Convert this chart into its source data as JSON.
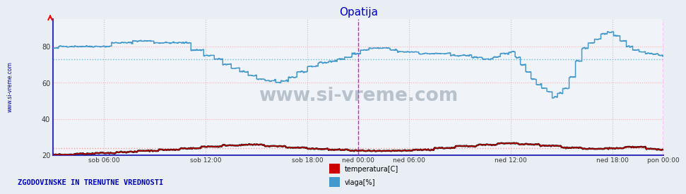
{
  "title": "Opatija",
  "title_color": "#0000cc",
  "bg_color": "#e8eef4",
  "plot_bg_color": "#f0f4f8",
  "ylim": [
    20,
    95
  ],
  "yticks": [
    20,
    40,
    60,
    80
  ],
  "xlim_n": 576,
  "n_points": 577,
  "xtick_positions": [
    48,
    144,
    240,
    288,
    336,
    432,
    528,
    576
  ],
  "xtick_labels": [
    "sob 06:00",
    "sob 12:00",
    "sob 18:00",
    "ned 00:00",
    "ned 06:00",
    "ned 12:00",
    "ned 18:00",
    "pon 00:00"
  ],
  "temp_color": "#cc0000",
  "vlaga_color": "#4499cc",
  "temp_avg_y": 24.0,
  "vlaga_avg_y": 73.0,
  "vline_x": 288,
  "vline_color": "#ff00ff",
  "hline_temp_color": "#ff9999",
  "hline_vlaga_color": "#66bbdd",
  "vgrid_color": "#ffaaaa",
  "hgrid_color": "#ffaaaa",
  "border_color": "#3333bb",
  "watermark": "www.si-vreme.com",
  "legend_text1": "temperatura[C]",
  "legend_text2": "vlaga[%]",
  "footer_text": "ZGODOVINSKE IN TRENUTNE VREDNOSTI",
  "footer_color": "#0000bb",
  "sidebar_text": "www.si-vreme.com",
  "sidebar_color": "#0000aa"
}
